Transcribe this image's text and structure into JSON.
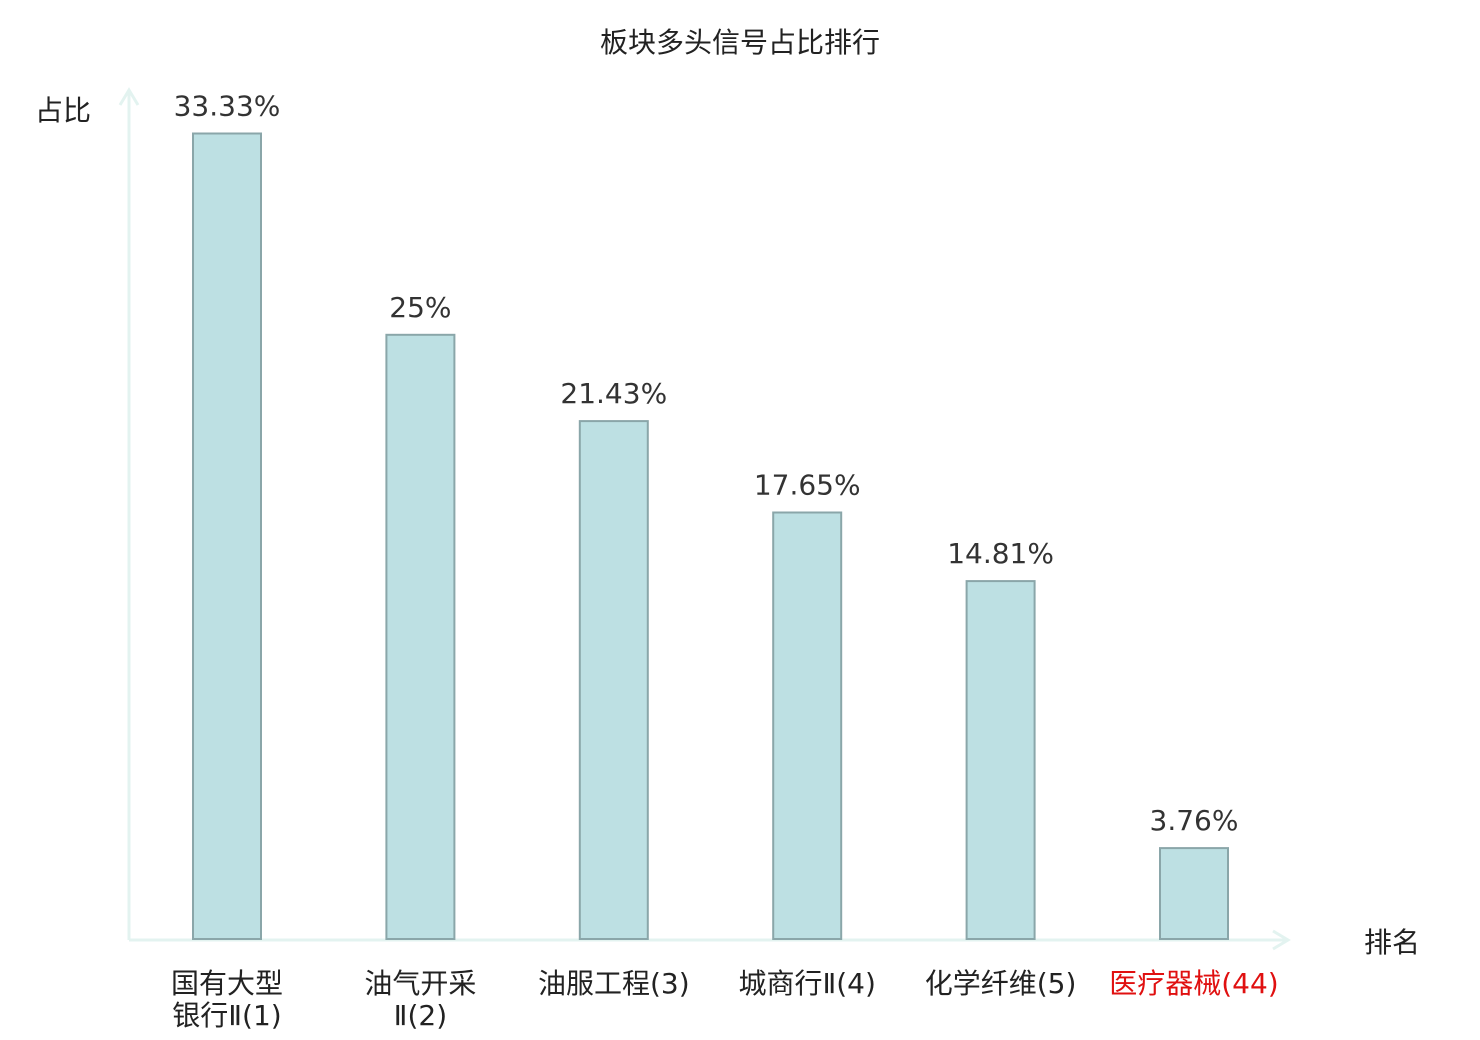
{
  "chart_data": {
    "type": "bar",
    "title": "板块多头信号占比排行",
    "xlabel": "排名",
    "ylabel": "占比",
    "ylim": [
      0,
      36
    ],
    "grid": false,
    "legend": "none",
    "categories": [
      {
        "lines": [
          "国有大型",
          "银行Ⅱ(1)"
        ],
        "highlight": false
      },
      {
        "lines": [
          "油气开采",
          "Ⅱ(2)"
        ],
        "highlight": false
      },
      {
        "lines": [
          "油服工程(3)"
        ],
        "highlight": false
      },
      {
        "lines": [
          "城商行Ⅱ(4)"
        ],
        "highlight": false
      },
      {
        "lines": [
          "化学纤维(5)"
        ],
        "highlight": false
      },
      {
        "lines": [
          "医疗器械(44)"
        ],
        "highlight": true
      }
    ],
    "values": [
      33.33,
      25,
      21.43,
      17.65,
      14.81,
      3.76
    ],
    "value_labels": [
      "33.33%",
      "25%",
      "21.43%",
      "17.65%",
      "14.81%",
      "3.76%"
    ],
    "colors": {
      "bar_fill": "#bde0e3",
      "bar_stroke": "#8aa6a9",
      "axis": "#e3f3f0",
      "highlight_label": "#e01010"
    }
  }
}
